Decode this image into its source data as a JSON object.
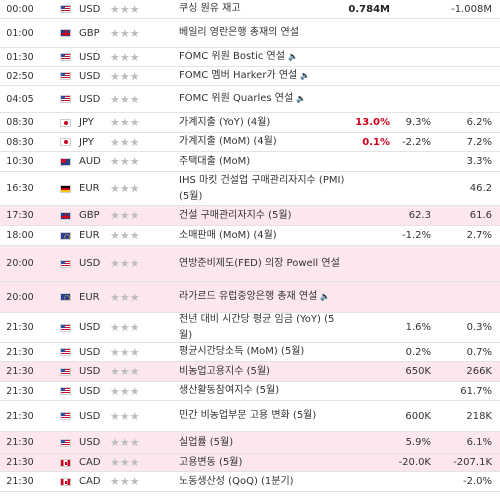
{
  "rows": [
    {
      "time": "00:00",
      "flag": "us",
      "currency": "USD",
      "stars": "★★★",
      "event": "쿠싱 원유 재고",
      "sound": false,
      "actual": "0.784M",
      "actual_red": false,
      "forecast": "",
      "previous": "-1.008M",
      "highlight": false
    },
    {
      "time": "01:00",
      "flag": "gb",
      "currency": "GBP",
      "stars": "★★★",
      "event": "베일리 영란은행 총재의 연설",
      "sound": false,
      "actual": "",
      "actual_red": false,
      "forecast": "",
      "previous": "",
      "highlight": false
    },
    {
      "time": "01:30",
      "flag": "us",
      "currency": "USD",
      "stars": "★★★",
      "event": "FOMC 위원 Bostic 연설",
      "sound": true,
      "actual": "",
      "actual_red": false,
      "forecast": "",
      "previous": "",
      "highlight": false
    },
    {
      "time": "02:50",
      "flag": "us",
      "currency": "USD",
      "stars": "★★★",
      "event": "FOMC 멤버 Harker가 연설",
      "sound": true,
      "actual": "",
      "actual_red": false,
      "forecast": "",
      "previous": "",
      "highlight": false
    },
    {
      "time": "04:05",
      "flag": "us",
      "currency": "USD",
      "stars": "★★★",
      "event": "FOMC 위원 Quarles 연설",
      "sound": true,
      "actual": "",
      "actual_red": false,
      "forecast": "",
      "previous": "",
      "highlight": false
    },
    {
      "time": "08:30",
      "flag": "jp",
      "currency": "JPY",
      "stars": "★★★",
      "event": "가계지출 (YoY) (4월)",
      "sound": false,
      "actual": "13.0%",
      "actual_red": true,
      "forecast": "9.3%",
      "previous": "6.2%",
      "highlight": false
    },
    {
      "time": "08:30",
      "flag": "jp",
      "currency": "JPY",
      "stars": "★★★",
      "event": "가계지출 (MoM) (4월)",
      "sound": false,
      "actual": "0.1%",
      "actual_red": true,
      "forecast": "-2.2%",
      "previous": "7.2%",
      "highlight": false
    },
    {
      "time": "10:30",
      "flag": "au",
      "currency": "AUD",
      "stars": "★★★",
      "event": "주택대출 (MoM)",
      "sound": false,
      "actual": "",
      "actual_red": false,
      "forecast": "",
      "previous": "3.3%",
      "highlight": false
    },
    {
      "time": "16:30",
      "flag": "de",
      "currency": "EUR",
      "stars": "★★★",
      "event": "IHS 마킷 건설업 구매관리자지수 (PMI) (5월)",
      "sound": false,
      "actual": "",
      "actual_red": false,
      "forecast": "",
      "previous": "46.2",
      "highlight": false
    },
    {
      "time": "17:30",
      "flag": "gb",
      "currency": "GBP",
      "stars": "★★★",
      "event": "건설 구매관리자지수 (5월)",
      "sound": false,
      "actual": "",
      "actual_red": false,
      "forecast": "62.3",
      "previous": "61.6",
      "highlight": true
    },
    {
      "time": "18:00",
      "flag": "eu",
      "currency": "EUR",
      "stars": "★★★",
      "event": "소매판매 (MoM) (4월)",
      "sound": false,
      "actual": "",
      "actual_red": false,
      "forecast": "-1.2%",
      "previous": "2.7%",
      "highlight": false
    },
    {
      "time": "20:00",
      "flag": "us",
      "currency": "USD",
      "stars": "★★★",
      "event": "연방준비제도(FED) 의장 Powell 연설",
      "sound": false,
      "actual": "",
      "actual_red": false,
      "forecast": "",
      "previous": "",
      "highlight": true
    },
    {
      "time": "20:00",
      "flag": "eu",
      "currency": "EUR",
      "stars": "★★★",
      "event": "라가르드 유럽중앙은행 총재 연설",
      "sound": true,
      "actual": "",
      "actual_red": false,
      "forecast": "",
      "previous": "",
      "highlight": true
    },
    {
      "time": "21:30",
      "flag": "us",
      "currency": "USD",
      "stars": "★★★",
      "event": "전년 대비 시간당 평균 임금 (YoY) (5월)",
      "sound": false,
      "actual": "",
      "actual_red": false,
      "forecast": "1.6%",
      "previous": "0.3%",
      "highlight": false
    },
    {
      "time": "21:30",
      "flag": "us",
      "currency": "USD",
      "stars": "★★★",
      "event": "평균시간당소득 (MoM) (5월)",
      "sound": false,
      "actual": "",
      "actual_red": false,
      "forecast": "0.2%",
      "previous": "0.7%",
      "highlight": false
    },
    {
      "time": "21:30",
      "flag": "us",
      "currency": "USD",
      "stars": "★★★",
      "event": "비농업고용지수 (5월)",
      "sound": false,
      "actual": "",
      "actual_red": false,
      "forecast": "650K",
      "previous": "266K",
      "highlight": true
    },
    {
      "time": "21:30",
      "flag": "us",
      "currency": "USD",
      "stars": "★★★",
      "event": "생산활동참여지수 (5월)",
      "sound": false,
      "actual": "",
      "actual_red": false,
      "forecast": "",
      "previous": "61.7%",
      "highlight": false
    },
    {
      "time": "21:30",
      "flag": "us",
      "currency": "USD",
      "stars": "★★★",
      "event": "민간 비농업부문 고용 변화 (5월)",
      "sound": false,
      "actual": "",
      "actual_red": false,
      "forecast": "600K",
      "previous": "218K",
      "highlight": false
    },
    {
      "time": "21:30",
      "flag": "us",
      "currency": "USD",
      "stars": "★★★",
      "event": "실업률 (5월)",
      "sound": false,
      "actual": "",
      "actual_red": false,
      "forecast": "5.9%",
      "previous": "6.1%",
      "highlight": true
    },
    {
      "time": "21:30",
      "flag": "ca",
      "currency": "CAD",
      "stars": "★★★",
      "event": "고용변동 (5월)",
      "sound": false,
      "actual": "",
      "actual_red": false,
      "forecast": "-20.0K",
      "previous": "-207.1K",
      "highlight": true
    },
    {
      "time": "21:30",
      "flag": "ca",
      "currency": "CAD",
      "stars": "★★★",
      "event": "노동생산성 (QoQ) (1분기)",
      "sound": false,
      "actual": "",
      "actual_red": false,
      "forecast": "",
      "previous": "-2.0%",
      "highlight": false
    }
  ],
  "icons": {
    "sound": "speaker-icon",
    "star": "star-icon"
  }
}
